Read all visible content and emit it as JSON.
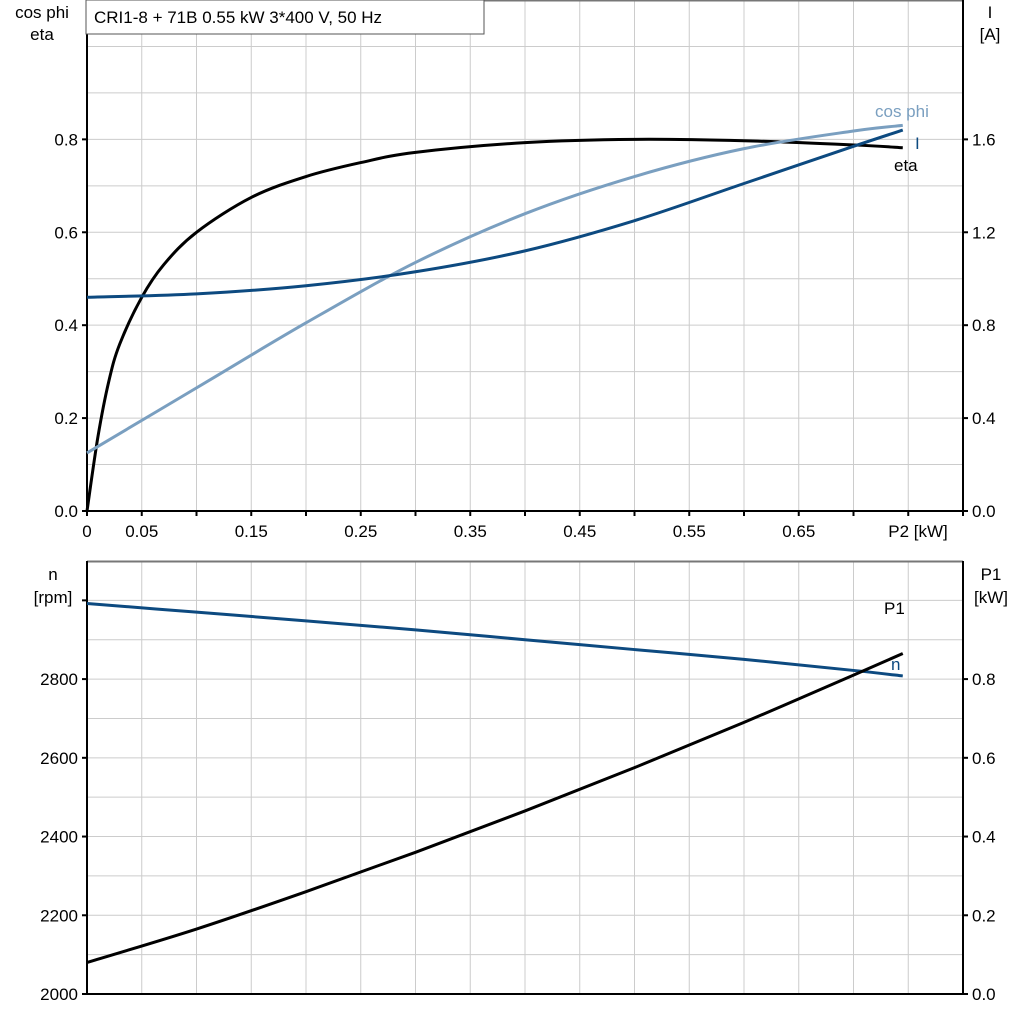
{
  "title": "CRI1-8 + 71B   0.55 kW   3*400 V, 50 Hz",
  "colors": {
    "eta": "#000000",
    "cos_phi": "#7a9fc0",
    "I": "#0d4a80",
    "n": "#0d4a80",
    "P1": "#000000",
    "grid": "#cccccc"
  },
  "chart_data": [
    {
      "type": "line",
      "xlabel": "P2 [kW]",
      "xlim": [
        0,
        0.8
      ],
      "x_tick_labels": [
        "0",
        "0.05",
        "0.15",
        "0.25",
        "0.35",
        "0.45",
        "0.55",
        "0.65"
      ],
      "x_tick_values": [
        0,
        0.05,
        0.15,
        0.25,
        0.35,
        0.45,
        0.55,
        0.65
      ],
      "ylabel_left": [
        "cos phi",
        "eta"
      ],
      "ylim_left": [
        0,
        1.1
      ],
      "y_ticks_left": [
        "0.0",
        "0.2",
        "0.4",
        "0.6",
        "0.8"
      ],
      "ylabel_right": [
        "I",
        "[A]"
      ],
      "ylim_right": [
        0,
        2.2
      ],
      "y_ticks_right": [
        "0.0",
        "0.4",
        "0.8",
        "1.2",
        "1.6"
      ],
      "grid": true,
      "series": [
        {
          "name": "eta",
          "axis": "left",
          "color": "#000000",
          "x": [
            0,
            0.01,
            0.02,
            0.03,
            0.05,
            0.07,
            0.1,
            0.15,
            0.2,
            0.25,
            0.3,
            0.4,
            0.5,
            0.6,
            0.7,
            0.745
          ],
          "y": [
            0,
            0.16,
            0.28,
            0.36,
            0.46,
            0.53,
            0.6,
            0.675,
            0.72,
            0.75,
            0.772,
            0.793,
            0.8,
            0.797,
            0.788,
            0.782
          ]
        },
        {
          "name": "cos phi",
          "axis": "left",
          "color": "#7a9fc0",
          "x": [
            0,
            0.1,
            0.2,
            0.3,
            0.4,
            0.5,
            0.6,
            0.7,
            0.745
          ],
          "y": [
            0.125,
            0.265,
            0.405,
            0.535,
            0.64,
            0.72,
            0.78,
            0.818,
            0.83
          ]
        },
        {
          "name": "I",
          "axis": "right",
          "color": "#0d4a80",
          "x": [
            0,
            0.1,
            0.2,
            0.3,
            0.4,
            0.5,
            0.6,
            0.7,
            0.745
          ],
          "y": [
            0.92,
            0.935,
            0.97,
            1.03,
            1.12,
            1.25,
            1.41,
            1.57,
            1.64
          ]
        }
      ]
    },
    {
      "type": "line",
      "xlim": [
        0,
        0.8
      ],
      "ylabel_left": [
        "n",
        "[rpm]"
      ],
      "ylim_left": [
        2000,
        3100
      ],
      "y_ticks_left": [
        "2000",
        "2200",
        "2400",
        "2600",
        "2800"
      ],
      "ylabel_right": [
        "P1",
        "[kW]"
      ],
      "ylim_right": [
        0,
        1.1
      ],
      "y_ticks_right": [
        "0.0",
        "0.2",
        "0.4",
        "0.6",
        "0.8"
      ],
      "grid": true,
      "series": [
        {
          "name": "n",
          "axis": "left",
          "color": "#0d4a80",
          "x": [
            0,
            0.1,
            0.2,
            0.3,
            0.4,
            0.5,
            0.6,
            0.7,
            0.745
          ],
          "y": [
            2992,
            2970,
            2948,
            2925,
            2900,
            2875,
            2850,
            2822,
            2808
          ]
        },
        {
          "name": "P1",
          "axis": "right",
          "color": "#000000",
          "x": [
            0,
            0.1,
            0.2,
            0.3,
            0.4,
            0.5,
            0.6,
            0.7,
            0.745
          ],
          "y": [
            0.08,
            0.165,
            0.26,
            0.36,
            0.465,
            0.575,
            0.69,
            0.81,
            0.865
          ]
        }
      ]
    }
  ]
}
